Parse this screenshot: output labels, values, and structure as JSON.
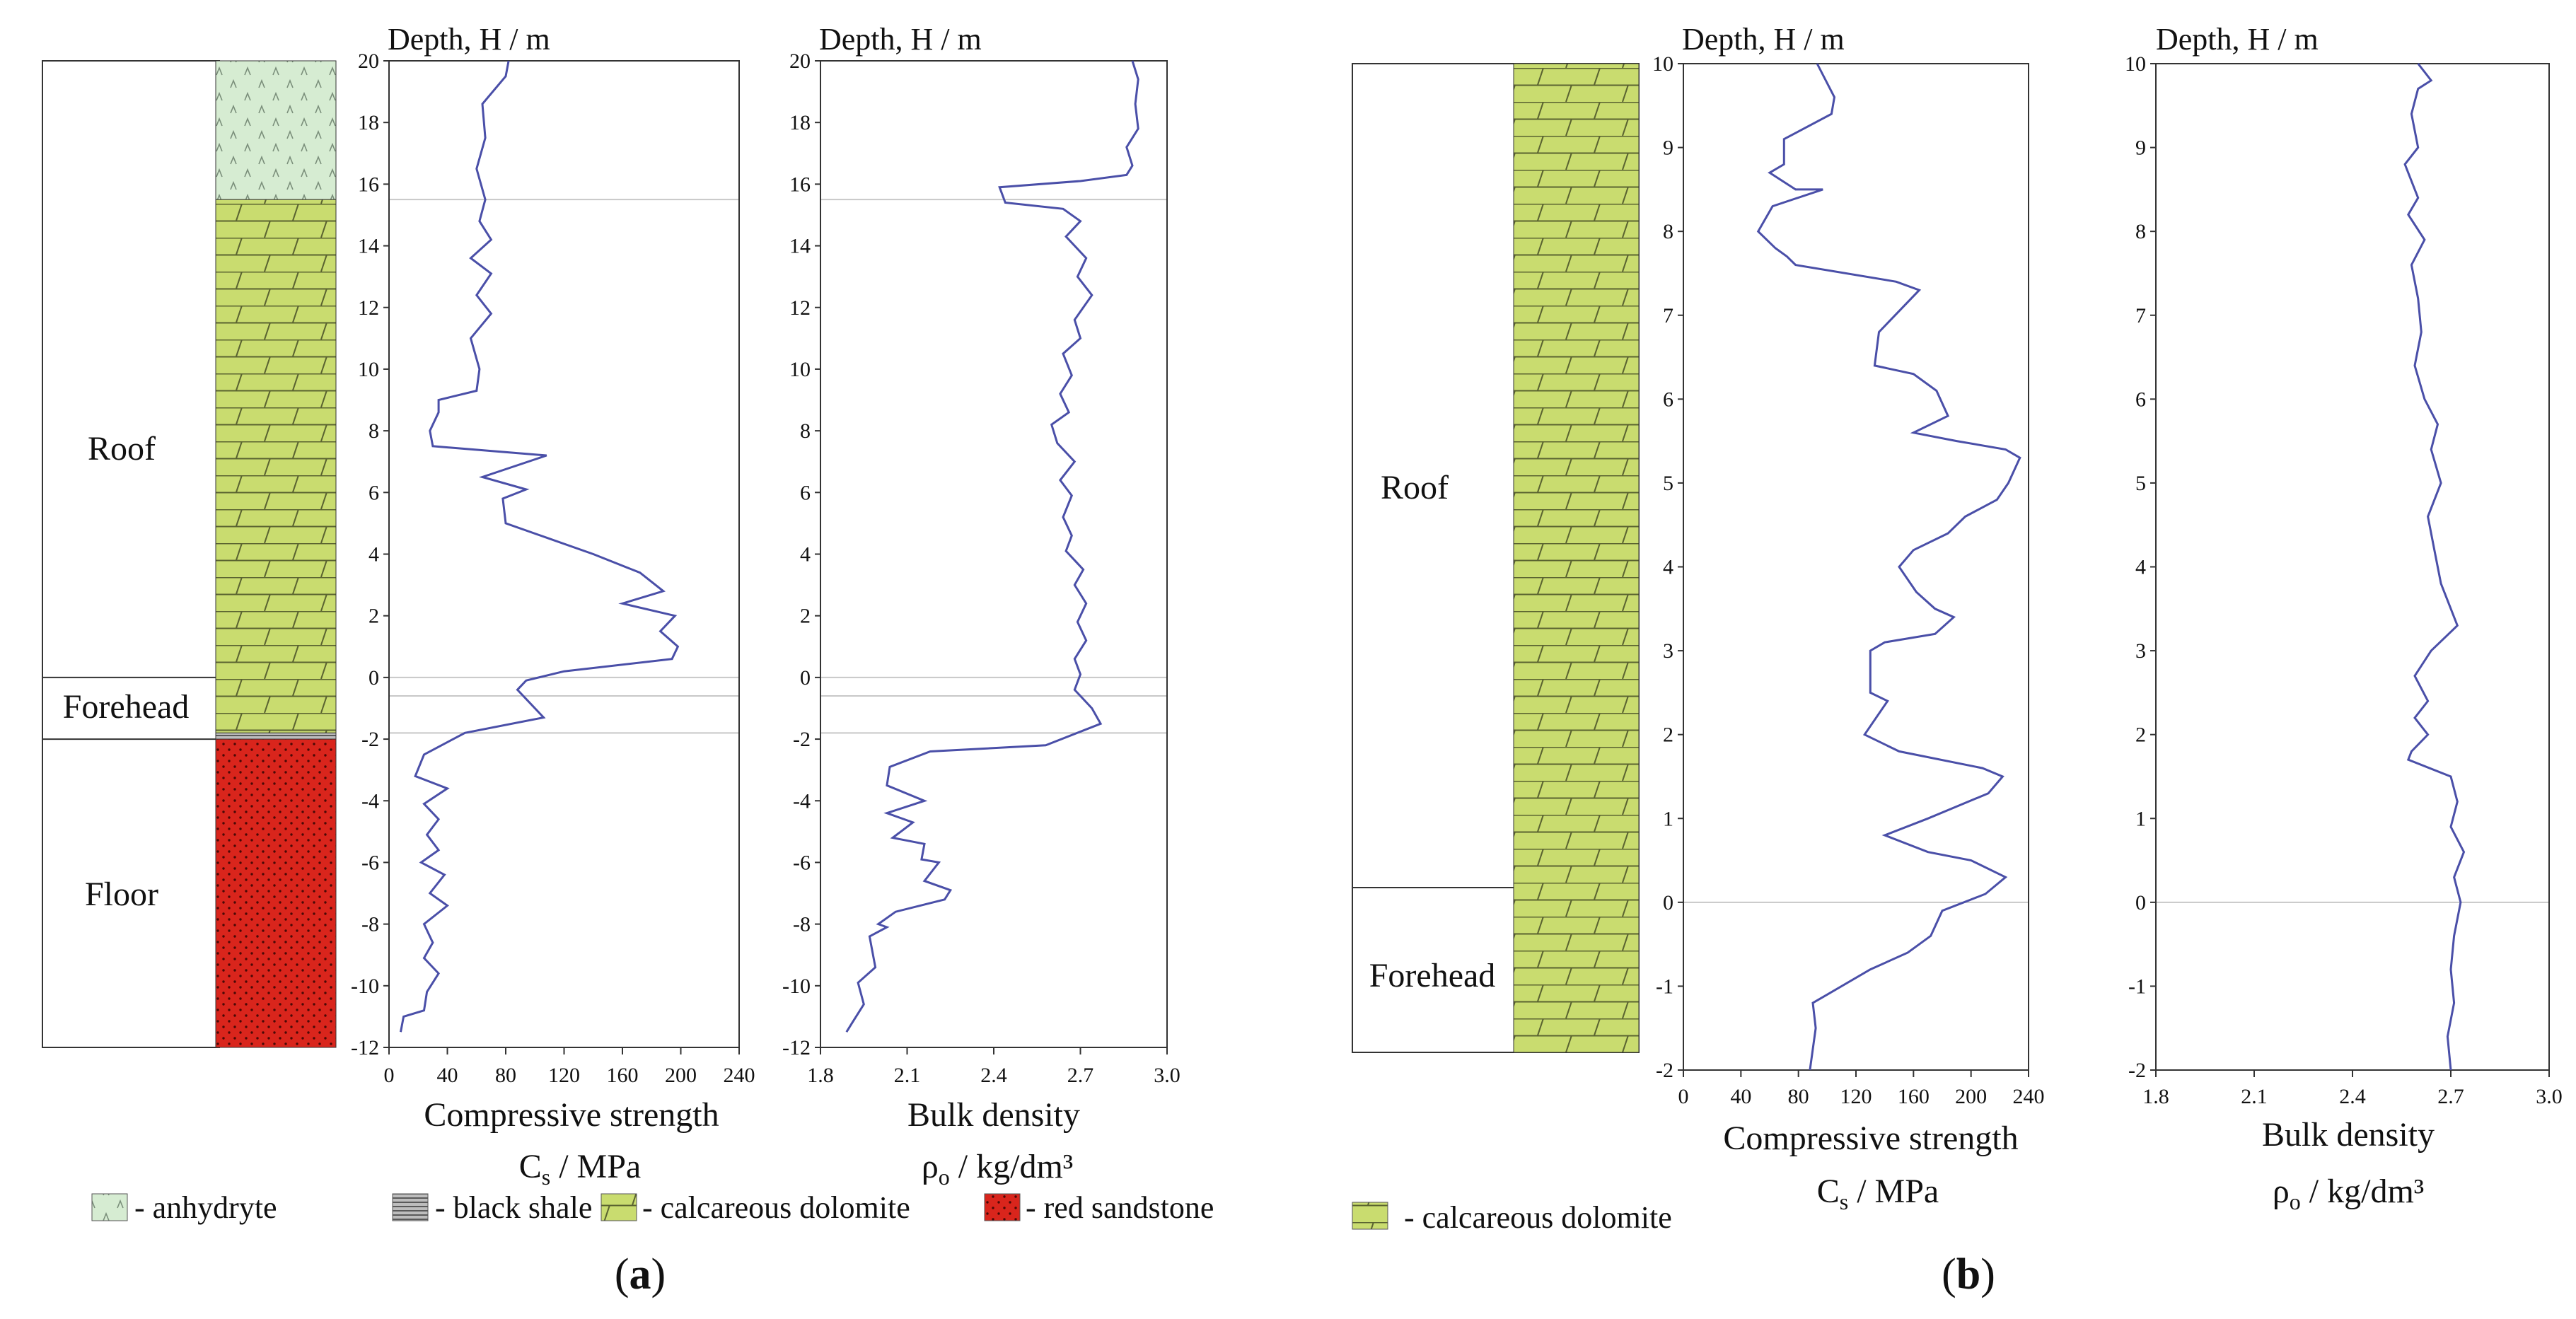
{
  "colors": {
    "anhydrite": "#d6ecd2",
    "black_shale": "#9a9a9a",
    "dolomite": "#c9dc6f",
    "sandstone": "#d9251c",
    "curve": "#4a4fa8",
    "axis": "#444444"
  },
  "chart_data": [
    {
      "panel": "(a)",
      "type": "line",
      "depth_label": "Depth, H / m",
      "depth_range": [
        -12,
        20
      ],
      "depth_ticks": [
        -12,
        -10,
        -8,
        -6,
        -4,
        -2,
        0,
        2,
        4,
        6,
        8,
        10,
        12,
        14,
        16,
        18,
        20
      ],
      "zones": [
        {
          "label": "Roof",
          "top": 20,
          "bottom": 0
        },
        {
          "label": "Forehead",
          "top": 0,
          "bottom": -2
        },
        {
          "label": "Floor",
          "top": -2,
          "bottom": -12
        }
      ],
      "lithology": [
        {
          "rock": "anhydrite",
          "top": 20,
          "bottom": 15.5
        },
        {
          "rock": "dolomite",
          "top": 15.5,
          "bottom": -1.8
        },
        {
          "rock": "black_shale",
          "top": -1.8,
          "bottom": -2.0
        },
        {
          "rock": "sandstone",
          "top": -2.0,
          "bottom": -12
        }
      ],
      "boundaries": [
        15.5,
        0,
        -0.6,
        -1.8
      ],
      "compressive_strength": {
        "title": "Compressive strength",
        "unit_label": "C_s / MPa",
        "xlim": [
          0,
          240
        ],
        "ticks": [
          0,
          40,
          80,
          120,
          160,
          200,
          240
        ],
        "points": [
          [
            82,
            20
          ],
          [
            80,
            19.5
          ],
          [
            64,
            18.6
          ],
          [
            66,
            17.5
          ],
          [
            60,
            16.5
          ],
          [
            66,
            15.5
          ],
          [
            62,
            14.8
          ],
          [
            70,
            14.2
          ],
          [
            56,
            13.6
          ],
          [
            70,
            13.1
          ],
          [
            60,
            12.4
          ],
          [
            70,
            11.8
          ],
          [
            56,
            11
          ],
          [
            62,
            10
          ],
          [
            60,
            9.3
          ],
          [
            34,
            9
          ],
          [
            34,
            8.6
          ],
          [
            28,
            8
          ],
          [
            30,
            7.5
          ],
          [
            108,
            7.2
          ],
          [
            64,
            6.5
          ],
          [
            94,
            6.1
          ],
          [
            78,
            5.8
          ],
          [
            80,
            5.0
          ],
          [
            110,
            4.5
          ],
          [
            140,
            4.0
          ],
          [
            172,
            3.4
          ],
          [
            188,
            2.8
          ],
          [
            160,
            2.4
          ],
          [
            196,
            2.0
          ],
          [
            186,
            1.5
          ],
          [
            198,
            1.0
          ],
          [
            194,
            0.6
          ],
          [
            120,
            0.2
          ],
          [
            94,
            -0.1
          ],
          [
            88,
            -0.4
          ],
          [
            106,
            -1.3
          ],
          [
            52,
            -1.8
          ],
          [
            24,
            -2.5
          ],
          [
            18,
            -3.2
          ],
          [
            40,
            -3.6
          ],
          [
            24,
            -4.1
          ],
          [
            34,
            -4.6
          ],
          [
            26,
            -5.1
          ],
          [
            34,
            -5.6
          ],
          [
            22,
            -6.0
          ],
          [
            38,
            -6.4
          ],
          [
            28,
            -7.0
          ],
          [
            40,
            -7.4
          ],
          [
            24,
            -8.0
          ],
          [
            30,
            -8.6
          ],
          [
            24,
            -9.1
          ],
          [
            34,
            -9.6
          ],
          [
            26,
            -10.2
          ],
          [
            24,
            -10.8
          ],
          [
            10,
            -11.0
          ],
          [
            8,
            -11.5
          ]
        ]
      },
      "bulk_density": {
        "title": "Bulk density",
        "unit_label": "ρ_o / kg/dm³",
        "xlim": [
          1.8,
          3.0
        ],
        "ticks": [
          1.8,
          2.1,
          2.4,
          2.7,
          3.0
        ],
        "tick_labels": [
          "1.8",
          "2.1",
          "2.4",
          "2.7",
          "3.0"
        ],
        "points": [
          [
            2.88,
            20
          ],
          [
            2.9,
            19.4
          ],
          [
            2.89,
            18.6
          ],
          [
            2.9,
            17.8
          ],
          [
            2.86,
            17.2
          ],
          [
            2.88,
            16.6
          ],
          [
            2.86,
            16.3
          ],
          [
            2.7,
            16.1
          ],
          [
            2.42,
            15.9
          ],
          [
            2.44,
            15.4
          ],
          [
            2.64,
            15.2
          ],
          [
            2.7,
            14.8
          ],
          [
            2.65,
            14.3
          ],
          [
            2.72,
            13.6
          ],
          [
            2.69,
            13.0
          ],
          [
            2.74,
            12.4
          ],
          [
            2.68,
            11.6
          ],
          [
            2.7,
            11.0
          ],
          [
            2.64,
            10.5
          ],
          [
            2.67,
            9.8
          ],
          [
            2.63,
            9.2
          ],
          [
            2.66,
            8.6
          ],
          [
            2.6,
            8.2
          ],
          [
            2.62,
            7.6
          ],
          [
            2.68,
            7.0
          ],
          [
            2.63,
            6.4
          ],
          [
            2.67,
            5.9
          ],
          [
            2.64,
            5.2
          ],
          [
            2.67,
            4.6
          ],
          [
            2.65,
            4.1
          ],
          [
            2.71,
            3.5
          ],
          [
            2.68,
            3.0
          ],
          [
            2.72,
            2.4
          ],
          [
            2.69,
            1.8
          ],
          [
            2.72,
            1.2
          ],
          [
            2.68,
            0.6
          ],
          [
            2.7,
            0.1
          ],
          [
            2.68,
            -0.4
          ],
          [
            2.74,
            -1.0
          ],
          [
            2.77,
            -1.5
          ],
          [
            2.58,
            -2.2
          ],
          [
            2.18,
            -2.4
          ],
          [
            2.04,
            -2.9
          ],
          [
            2.03,
            -3.5
          ],
          [
            2.16,
            -4.0
          ],
          [
            2.03,
            -4.4
          ],
          [
            2.12,
            -4.7
          ],
          [
            2.05,
            -5.2
          ],
          [
            2.16,
            -5.4
          ],
          [
            2.15,
            -5.9
          ],
          [
            2.21,
            -6.0
          ],
          [
            2.16,
            -6.6
          ],
          [
            2.25,
            -6.9
          ],
          [
            2.23,
            -7.2
          ],
          [
            2.06,
            -7.6
          ],
          [
            2.0,
            -8.0
          ],
          [
            2.03,
            -8.1
          ],
          [
            1.97,
            -8.4
          ],
          [
            1.99,
            -9.4
          ],
          [
            1.93,
            -9.9
          ],
          [
            1.95,
            -10.6
          ],
          [
            1.91,
            -11.2
          ],
          [
            1.89,
            -11.5
          ]
        ]
      },
      "legend": [
        "- anhydryte",
        "- black shale",
        "- calcareous dolomite",
        "- red sandstone"
      ]
    },
    {
      "panel": "(b)",
      "type": "line",
      "depth_label": "Depth, H / m",
      "depth_range": [
        -2,
        10
      ],
      "depth_ticks": [
        -2,
        -1,
        0,
        1,
        2,
        3,
        4,
        5,
        6,
        7,
        8,
        9,
        10
      ],
      "zones": [
        {
          "label": "Roof",
          "top": 10,
          "bottom": 0
        },
        {
          "label": "Forehead",
          "top": 0,
          "bottom": -2
        }
      ],
      "lithology": [
        {
          "rock": "dolomite",
          "top": 10,
          "bottom": -2
        }
      ],
      "boundaries": [
        0
      ],
      "compressive_strength": {
        "title": "Compressive strength",
        "unit_label": "C_s / MPa",
        "xlim": [
          0,
          240
        ],
        "ticks": [
          0,
          40,
          80,
          120,
          160,
          200,
          240
        ],
        "points": [
          [
            93,
            10
          ],
          [
            105,
            9.6
          ],
          [
            103,
            9.4
          ],
          [
            70,
            9.1
          ],
          [
            70,
            8.8
          ],
          [
            60,
            8.7
          ],
          [
            78,
            8.5
          ],
          [
            97,
            8.5
          ],
          [
            62,
            8.3
          ],
          [
            52,
            8.0
          ],
          [
            64,
            7.8
          ],
          [
            72,
            7.7
          ],
          [
            78,
            7.6
          ],
          [
            148,
            7.4
          ],
          [
            164,
            7.3
          ],
          [
            136,
            6.8
          ],
          [
            133,
            6.4
          ],
          [
            160,
            6.3
          ],
          [
            176,
            6.1
          ],
          [
            184,
            5.8
          ],
          [
            160,
            5.6
          ],
          [
            190,
            5.5
          ],
          [
            224,
            5.4
          ],
          [
            234,
            5.3
          ],
          [
            226,
            5.0
          ],
          [
            218,
            4.8
          ],
          [
            196,
            4.6
          ],
          [
            184,
            4.4
          ],
          [
            160,
            4.2
          ],
          [
            150,
            4.0
          ],
          [
            162,
            3.7
          ],
          [
            175,
            3.5
          ],
          [
            188,
            3.4
          ],
          [
            175,
            3.2
          ],
          [
            140,
            3.1
          ],
          [
            130,
            3.0
          ],
          [
            130,
            2.5
          ],
          [
            142,
            2.4
          ],
          [
            130,
            2.1
          ],
          [
            126,
            2.0
          ],
          [
            150,
            1.8
          ],
          [
            208,
            1.6
          ],
          [
            222,
            1.5
          ],
          [
            212,
            1.3
          ],
          [
            170,
            1.0
          ],
          [
            140,
            0.8
          ],
          [
            170,
            0.6
          ],
          [
            200,
            0.5
          ],
          [
            224,
            0.3
          ],
          [
            210,
            0.1
          ],
          [
            180,
            -0.1
          ],
          [
            172,
            -0.4
          ],
          [
            156,
            -0.6
          ],
          [
            130,
            -0.8
          ],
          [
            100,
            -1.1
          ],
          [
            90,
            -1.2
          ],
          [
            92,
            -1.5
          ],
          [
            88,
            -2.0
          ]
        ]
      },
      "bulk_density": {
        "title": "Bulk density",
        "unit_label": "ρ_o / kg/dm³",
        "xlim": [
          1.8,
          3.0
        ],
        "ticks": [
          1.8,
          2.1,
          2.4,
          2.7,
          3.0
        ],
        "tick_labels": [
          "1.8",
          "2.1",
          "2.4",
          "2.7",
          "3.0"
        ],
        "points": [
          [
            2.6,
            10
          ],
          [
            2.64,
            9.8
          ],
          [
            2.6,
            9.7
          ],
          [
            2.58,
            9.4
          ],
          [
            2.6,
            9.0
          ],
          [
            2.56,
            8.8
          ],
          [
            2.6,
            8.4
          ],
          [
            2.57,
            8.2
          ],
          [
            2.62,
            7.9
          ],
          [
            2.58,
            7.6
          ],
          [
            2.6,
            7.2
          ],
          [
            2.61,
            6.8
          ],
          [
            2.59,
            6.4
          ],
          [
            2.62,
            6.0
          ],
          [
            2.66,
            5.7
          ],
          [
            2.64,
            5.4
          ],
          [
            2.67,
            5.0
          ],
          [
            2.63,
            4.6
          ],
          [
            2.65,
            4.2
          ],
          [
            2.67,
            3.8
          ],
          [
            2.72,
            3.3
          ],
          [
            2.64,
            3.0
          ],
          [
            2.59,
            2.7
          ],
          [
            2.63,
            2.4
          ],
          [
            2.59,
            2.2
          ],
          [
            2.63,
            2.0
          ],
          [
            2.58,
            1.8
          ],
          [
            2.57,
            1.7
          ],
          [
            2.7,
            1.5
          ],
          [
            2.72,
            1.2
          ],
          [
            2.7,
            0.9
          ],
          [
            2.74,
            0.6
          ],
          [
            2.71,
            0.3
          ],
          [
            2.73,
            0.0
          ],
          [
            2.71,
            -0.4
          ],
          [
            2.7,
            -0.8
          ],
          [
            2.71,
            -1.2
          ],
          [
            2.69,
            -1.6
          ],
          [
            2.7,
            -2.0
          ]
        ]
      },
      "legend": [
        "- calcareous dolomite"
      ]
    }
  ]
}
